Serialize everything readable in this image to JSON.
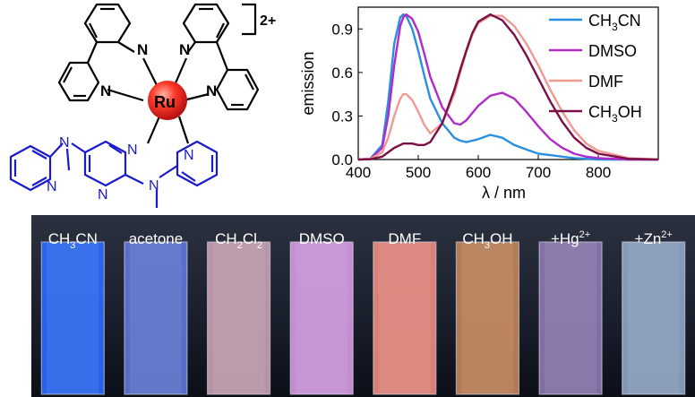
{
  "structure": {
    "metal_label": "Ru",
    "charge": "2+",
    "n_label": "N"
  },
  "chart_data": {
    "type": "line",
    "xlabel": "λ / nm",
    "ylabel": "emission",
    "xlim": [
      400,
      900
    ],
    "ylim": [
      0,
      1.05
    ],
    "xticks": [
      400,
      500,
      600,
      700,
      800
    ],
    "yticks": [
      "0.0",
      "0.3",
      "0.6",
      "0.9"
    ],
    "grid": false,
    "legend_position": "top-right",
    "x": [
      400,
      420,
      440,
      450,
      460,
      470,
      475,
      480,
      490,
      500,
      510,
      520,
      540,
      560,
      570,
      580,
      590,
      600,
      620,
      640,
      660,
      680,
      700,
      720,
      740,
      760,
      780,
      800,
      850,
      900
    ],
    "series": [
      {
        "name": "CH3CN",
        "color": "#2b8fe0",
        "values": [
          0,
          0.005,
          0.1,
          0.4,
          0.8,
          0.98,
          1.0,
          0.99,
          0.9,
          0.75,
          0.58,
          0.42,
          0.25,
          0.15,
          0.13,
          0.12,
          0.13,
          0.14,
          0.17,
          0.15,
          0.1,
          0.07,
          0.04,
          0.03,
          0.02,
          0.01,
          0.005,
          0,
          0,
          0
        ]
      },
      {
        "name": "DMSO",
        "color": "#b02cc8",
        "values": [
          0,
          0.005,
          0.08,
          0.3,
          0.65,
          0.92,
          0.98,
          1.0,
          0.97,
          0.88,
          0.73,
          0.57,
          0.36,
          0.25,
          0.24,
          0.27,
          0.32,
          0.37,
          0.44,
          0.46,
          0.42,
          0.33,
          0.23,
          0.14,
          0.08,
          0.04,
          0.02,
          0.01,
          0,
          0
        ]
      },
      {
        "name": "DMF",
        "color": "#f09a92",
        "values": [
          0,
          0.005,
          0.05,
          0.15,
          0.3,
          0.42,
          0.45,
          0.45,
          0.41,
          0.33,
          0.24,
          0.18,
          0.25,
          0.45,
          0.6,
          0.74,
          0.86,
          0.94,
          0.99,
          0.99,
          0.92,
          0.8,
          0.65,
          0.48,
          0.33,
          0.2,
          0.11,
          0.06,
          0.01,
          0
        ]
      },
      {
        "name": "CH3OH",
        "color": "#7a1046",
        "values": [
          0,
          0.002,
          0.02,
          0.05,
          0.08,
          0.1,
          0.11,
          0.11,
          0.11,
          0.1,
          0.1,
          0.12,
          0.25,
          0.48,
          0.62,
          0.75,
          0.87,
          0.95,
          1.0,
          0.96,
          0.86,
          0.72,
          0.56,
          0.4,
          0.26,
          0.15,
          0.08,
          0.04,
          0.005,
          0
        ]
      }
    ]
  },
  "photo": {
    "labels": [
      {
        "base": "CH",
        "sub": "3",
        "rest": "CN"
      },
      {
        "base": "acetone"
      },
      {
        "base": "CH",
        "sub": "2",
        "rest": "Cl",
        "sub2": "2"
      },
      {
        "base": "DMSO"
      },
      {
        "base": "DMF"
      },
      {
        "base": "CH",
        "sub": "3",
        "rest": "OH"
      },
      {
        "base": "+Hg",
        "sup": "2+"
      },
      {
        "base": "+Zn",
        "sup": "2+"
      }
    ],
    "colors": [
      "#2a6cff",
      "#5f78d8",
      "#c9a1b4",
      "#d79ae4",
      "#f08c80",
      "#c78559",
      "#8f78b2",
      "#8fa6c6"
    ]
  }
}
